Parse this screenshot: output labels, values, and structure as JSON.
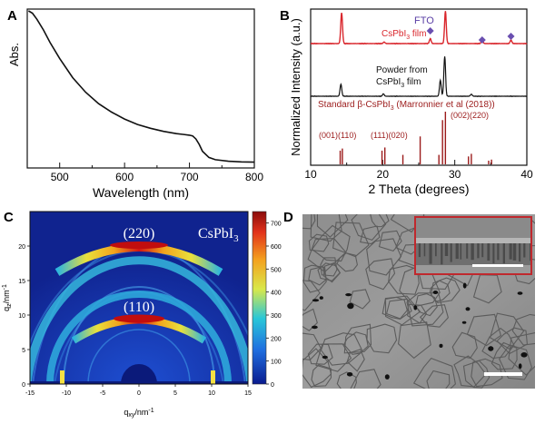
{
  "panels": {
    "a": {
      "letter": "A",
      "xlabel": "Wavelength (nm)",
      "ylabel": "Abs.",
      "xticks": [
        "500",
        "600",
        "700",
        "800"
      ]
    },
    "b": {
      "letter": "B",
      "xlabel": "2 Theta (degrees)",
      "ylabel": "Normalized Intensity (a.u.)",
      "xticks": [
        "10",
        "20",
        "30",
        "40"
      ],
      "labels": {
        "film": "CsPbI",
        "film_sub": "3",
        "film_tail": " film",
        "fto": "FTO",
        "powder_line1": "Powder from",
        "powder_line2": "CsPbI",
        "powder_line2_sub": "3",
        "powder_line2_tail": " film",
        "standard": "Standard β-CsPbI",
        "standard_sub": "3",
        "standard_tail": " (Marronnier et al (2018))",
        "peak_a": "(001)(110)",
        "peak_b": "(111)(020)",
        "peak_c": "(002)(220)"
      }
    },
    "c": {
      "letter": "C",
      "xlabel_main": "q",
      "xlabel_sub": "xy",
      "xlabel_tail": "/nm",
      "xlabel_sup": "-1",
      "ylabel_main": "q",
      "ylabel_sub": "z",
      "ylabel_tail": "/nm",
      "ylabel_sup": "-1",
      "xticks": [
        "-15",
        "-10",
        "-5",
        "0",
        "5",
        "10",
        "15"
      ],
      "yticks": [
        "0",
        "5",
        "10",
        "15",
        "20"
      ],
      "colorbar_ticks": [
        "0",
        "100",
        "200",
        "300",
        "400",
        "500",
        "600",
        "700"
      ],
      "label_220": "(220)",
      "label_110": "(110)",
      "compound": "CsPbI",
      "compound_sub": "3"
    },
    "d": {
      "letter": "D"
    }
  },
  "colors": {
    "film_trace": "#d9262c",
    "powder_trace": "#111111",
    "standard_sticks": "#9b1b1b",
    "fto_marker": "#6a4fb0",
    "inset_border": "#c0282d"
  },
  "chart_data": [
    {
      "panel": "A",
      "type": "line",
      "xlabel": "Wavelength (nm)",
      "ylabel": "Abs.",
      "xlim": [
        450,
        800
      ],
      "x": [
        452,
        458,
        465,
        475,
        485,
        500,
        520,
        540,
        560,
        580,
        600,
        620,
        640,
        660,
        680,
        690,
        700,
        705,
        710,
        715,
        720,
        730,
        740,
        760,
        780,
        800
      ],
      "y": [
        1.0,
        0.985,
        0.945,
        0.875,
        0.795,
        0.69,
        0.565,
        0.47,
        0.395,
        0.34,
        0.295,
        0.26,
        0.235,
        0.215,
        0.2,
        0.195,
        0.19,
        0.185,
        0.165,
        0.13,
        0.085,
        0.045,
        0.03,
        0.02,
        0.016,
        0.014
      ]
    },
    {
      "panel": "B",
      "type": "line",
      "xlabel": "2 Theta (degrees)",
      "ylabel": "Normalized Intensity (a.u.)",
      "xlim": [
        10,
        40
      ],
      "series": [
        {
          "name": "CsPbI3 film",
          "peaks": [
            [
              14.3,
              1.0
            ],
            [
              20.2,
              0.05
            ],
            [
              26.6,
              0.16
            ],
            [
              28.7,
              1.05
            ],
            [
              33.8,
              0.12
            ],
            [
              37.8,
              0.12
            ]
          ]
        },
        {
          "name": "Powder from CsPbI3 film",
          "peaks": [
            [
              14.2,
              0.3
            ],
            [
              20.1,
              0.06
            ],
            [
              28.0,
              0.4
            ],
            [
              28.6,
              1.0
            ],
            [
              32.3,
              0.05
            ]
          ]
        },
        {
          "name": "Standard β-CsPbI3 (Marronnier et al (2018))",
          "sticks": [
            [
              14.1,
              0.26
            ],
            [
              14.4,
              0.3
            ],
            [
              19.9,
              0.26
            ],
            [
              20.3,
              0.32
            ],
            [
              22.8,
              0.18
            ],
            [
              25.2,
              0.53
            ],
            [
              27.8,
              0.18
            ],
            [
              28.3,
              0.84
            ],
            [
              28.7,
              1.0
            ],
            [
              31.9,
              0.15
            ],
            [
              32.3,
              0.2
            ],
            [
              34.7,
              0.07
            ],
            [
              35.1,
              0.09
            ]
          ]
        }
      ],
      "markers": {
        "name": "FTO",
        "x": [
          26.6,
          33.8,
          37.8
        ]
      }
    },
    {
      "panel": "C",
      "type": "heatmap",
      "xlim": [
        -15,
        15
      ],
      "ylim": [
        0,
        25
      ],
      "colorbar_range": [
        0,
        750
      ],
      "rings": [
        {
          "label": "(110)",
          "q": 10.3,
          "peak_intensity": 700
        },
        {
          "label": "(220)",
          "q": 20.4,
          "peak_intensity": 700
        }
      ]
    }
  ]
}
